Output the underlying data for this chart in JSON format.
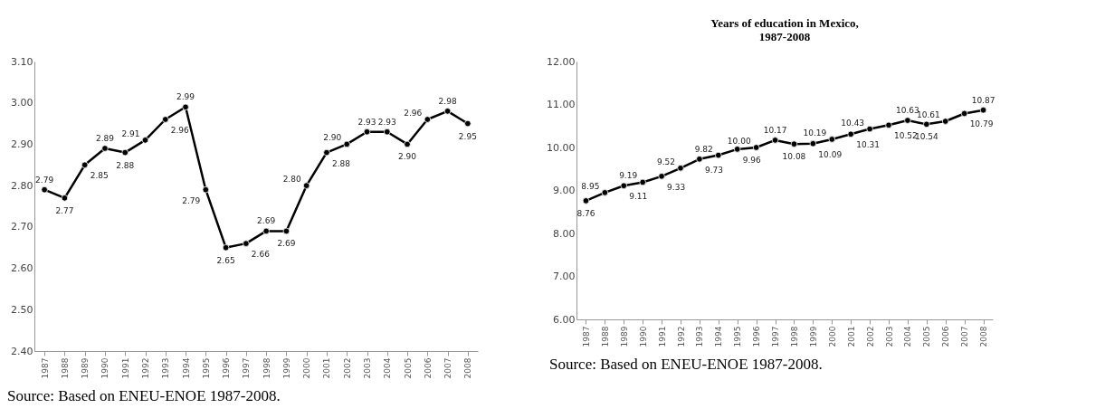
{
  "chart_data": [
    {
      "type": "line",
      "categories": [
        "1987",
        "1988",
        "1989",
        "1990",
        "1991",
        "1992",
        "1993",
        "1994",
        "1995",
        "1996",
        "1997",
        "1998",
        "1999",
        "2000",
        "2001",
        "2002",
        "2003",
        "2004",
        "2005",
        "2006",
        "2007",
        "2008"
      ],
      "series": [
        {
          "color": "#000000",
          "values": [
            2.79,
            2.77,
            2.85,
            2.89,
            2.88,
            2.91,
            2.96,
            2.99,
            2.79,
            2.65,
            2.66,
            2.69,
            2.69,
            2.8,
            2.88,
            2.9,
            2.93,
            2.93,
            2.9,
            2.96,
            2.98,
            2.95
          ]
        }
      ],
      "ylim": [
        2.4,
        3.1
      ],
      "yticks": [
        {
          "value": 2.4,
          "label": "2.40"
        },
        {
          "value": 2.5,
          "label": "2.50"
        },
        {
          "value": 2.6,
          "label": "2.60"
        },
        {
          "value": 2.7,
          "label": "2.70"
        },
        {
          "value": 2.8,
          "label": "2.80"
        },
        {
          "value": 2.9,
          "label": "2.90"
        },
        {
          "value": 3.0,
          "label": "3.00"
        },
        {
          "value": 3.1,
          "label": "3.10"
        }
      ],
      "value_labels": [
        "2.79",
        "2.77",
        "2.85",
        "2.89",
        "2.88",
        "2.91",
        "2.96",
        "2.99",
        "2.79",
        "2.65",
        "2.66",
        "2.69",
        "2.69",
        "2.80",
        "2.88",
        "2.90",
        "2.93",
        "2.93",
        "2.90",
        "2.96",
        "2.98",
        "2.95"
      ],
      "marker": "circle",
      "grid": false,
      "annotations": [
        "Source: Based on ENEU-ENOE 1987-2008."
      ]
    },
    {
      "type": "line",
      "title": "Years of education in Mexico,\n1987-2008",
      "categories": [
        "1987",
        "1988",
        "1989",
        "1990",
        "1991",
        "1992",
        "1993",
        "1994",
        "1995",
        "1996",
        "1997",
        "1998",
        "1999",
        "2000",
        "2001",
        "2002",
        "2003",
        "2004",
        "2005",
        "2006",
        "2007",
        "2008"
      ],
      "series": [
        {
          "color": "#000000",
          "values": [
            8.76,
            8.95,
            9.11,
            9.19,
            9.33,
            9.52,
            9.73,
            9.82,
            9.96,
            10.0,
            10.17,
            10.08,
            10.09,
            10.19,
            10.31,
            10.43,
            10.52,
            10.63,
            10.54,
            10.61,
            10.79,
            10.87
          ]
        }
      ],
      "ylim": [
        6,
        12
      ],
      "yticks": [
        {
          "value": 6,
          "label": "6.00"
        },
        {
          "value": 7,
          "label": "7.00"
        },
        {
          "value": 8,
          "label": "8.00"
        },
        {
          "value": 9,
          "label": "9.00"
        },
        {
          "value": 10,
          "label": "10.00"
        },
        {
          "value": 11,
          "label": "11.00"
        },
        {
          "value": 12,
          "label": "12.00"
        }
      ],
      "value_labels": [
        "8.76",
        "8.95",
        "9.11",
        "9.19",
        "9.33",
        "9.52",
        "9.73",
        "9.82",
        "9.96",
        "10.00",
        "10.17",
        "10.08",
        "10.09",
        "10.19",
        "10.31",
        "10.43",
        "10.52",
        "10.63",
        "10.54",
        "10.61",
        "10.79",
        "10.87"
      ],
      "marker": "circle",
      "grid": false,
      "annotations": [
        "Source: Based on ENEU-ENOE 1987-2008."
      ]
    }
  ]
}
